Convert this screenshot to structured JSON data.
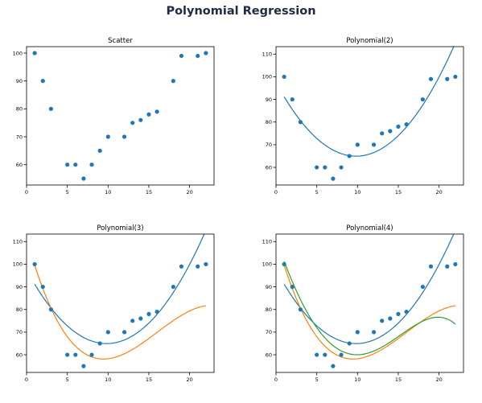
{
  "title": "Polynomial Regression",
  "colors": {
    "points": "#1f77b4",
    "deg2": "#1f77b4",
    "deg3": "#ff7f0e",
    "deg4": "#2ca02c"
  },
  "chart_data": [
    {
      "type": "scatter",
      "title": "Scatter",
      "x": [
        1,
        2,
        3,
        5,
        6,
        7,
        8,
        9,
        10,
        12,
        13,
        14,
        15,
        16,
        18,
        19,
        21,
        22
      ],
      "y": [
        100,
        90,
        80,
        60,
        60,
        55,
        60,
        65,
        70,
        70,
        75,
        76,
        78,
        79,
        90,
        99,
        99,
        100
      ],
      "xlim": [
        0,
        23
      ],
      "ylim": [
        52.7,
        102.3
      ],
      "xticks": [
        0,
        5,
        10,
        15,
        20
      ],
      "yticks": [
        60,
        70,
        80,
        90,
        100
      ],
      "curves": []
    },
    {
      "type": "scatter",
      "title": "Polynomial(2)",
      "x": [
        1,
        2,
        3,
        5,
        6,
        7,
        8,
        9,
        10,
        12,
        13,
        14,
        15,
        16,
        18,
        19,
        21,
        22
      ],
      "y": [
        100,
        90,
        80,
        60,
        60,
        55,
        60,
        65,
        70,
        70,
        75,
        76,
        78,
        79,
        90,
        99,
        99,
        100
      ],
      "xlim": [
        0,
        23
      ],
      "ylim": [
        52.2,
        113.3
      ],
      "xticks": [
        0,
        5,
        10,
        15,
        20
      ],
      "yticks": [
        60,
        70,
        80,
        90,
        100,
        110
      ],
      "curves": [
        {
          "degree": 2,
          "coef": [
            0.3372,
            -6.6234,
            97.4705
          ]
        }
      ]
    },
    {
      "type": "scatter",
      "title": "Polynomial(3)",
      "x": [
        1,
        2,
        3,
        5,
        6,
        7,
        8,
        9,
        10,
        12,
        13,
        14,
        15,
        16,
        18,
        19,
        21,
        22
      ],
      "y": [
        100,
        90,
        80,
        60,
        60,
        55,
        60,
        65,
        70,
        70,
        75,
        76,
        78,
        79,
        90,
        99,
        99,
        100
      ],
      "xlim": [
        0,
        23
      ],
      "ylim": [
        52.2,
        113.3
      ],
      "xticks": [
        0,
        5,
        10,
        15,
        20
      ],
      "yticks": [
        60,
        70,
        80,
        90,
        100,
        110
      ],
      "curves": [
        {
          "degree": 2,
          "coef": [
            0.3372,
            -6.6234,
            97.4705
          ]
        },
        {
          "degree": 3,
          "coef": [
            -0.0206,
            0.9915,
            -13.2154,
            111.8591
          ]
        }
      ]
    },
    {
      "type": "scatter",
      "title": "Polynomial(4)",
      "x": [
        1,
        2,
        3,
        5,
        6,
        7,
        8,
        9,
        10,
        12,
        13,
        14,
        15,
        16,
        18,
        19,
        21,
        22
      ],
      "y": [
        100,
        90,
        80,
        60,
        60,
        55,
        60,
        65,
        70,
        70,
        75,
        76,
        78,
        79,
        90,
        99,
        99,
        100
      ],
      "xlim": [
        0,
        23
      ],
      "ylim": [
        52.2,
        113.3
      ],
      "xticks": [
        0,
        5,
        10,
        15,
        20
      ],
      "yticks": [
        60,
        70,
        80,
        90,
        100,
        110
      ],
      "curves": [
        {
          "degree": 2,
          "coef": [
            0.3372,
            -6.6234,
            97.4705
          ]
        },
        {
          "degree": 3,
          "coef": [
            -0.0206,
            0.9915,
            -13.2154,
            111.8591
          ]
        },
        {
          "degree": 4,
          "coef": [
            -0.0008,
            0.0141,
            0.4762,
            -10.5,
            111.3
          ]
        }
      ]
    }
  ]
}
